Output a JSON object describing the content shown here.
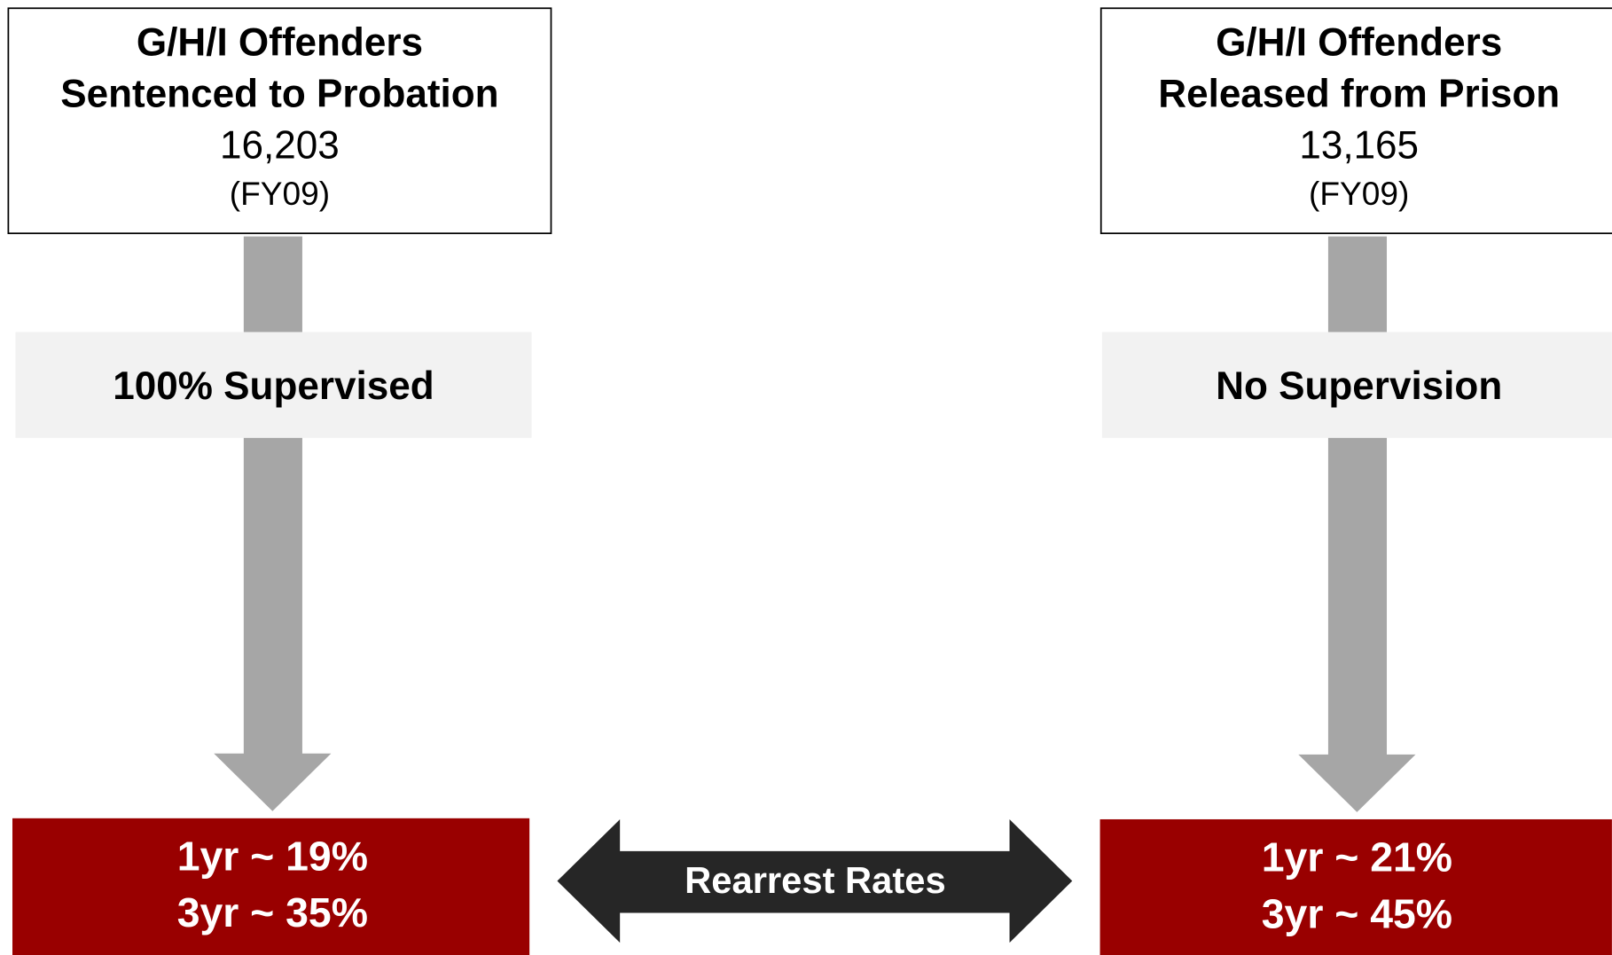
{
  "left": {
    "title": [
      "G/H/I Offenders",
      "Sentenced to Probation"
    ],
    "count": "16,203",
    "period": "(FY09)",
    "supervision": "100% Supervised",
    "rates": [
      "1yr ~ 19%",
      "3yr ~ 35%"
    ]
  },
  "right": {
    "title": [
      "G/H/I Offenders",
      "Released from Prison"
    ],
    "count": "13,165",
    "period": "(FY09)",
    "supervision": "No Supervision",
    "rates": [
      "1yr ~ 21%",
      "3yr ~ 45%"
    ]
  },
  "comparison": "Rearrest Rates"
}
